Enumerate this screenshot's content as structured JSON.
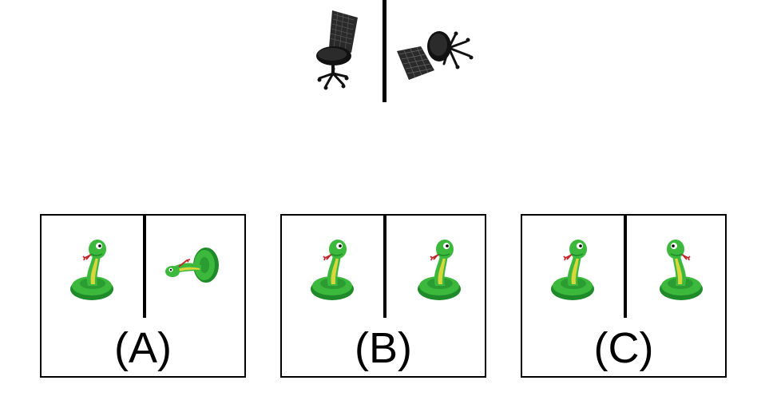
{
  "reference": {
    "left_image": "office-chair-view-1",
    "right_image": "office-chair-view-2"
  },
  "options": [
    {
      "label": "(A)",
      "left_image": "green-snake-view-1",
      "right_image": "green-snake-view-rotated"
    },
    {
      "label": "(B)",
      "left_image": "green-snake-view-1",
      "right_image": "green-snake-view-1"
    },
    {
      "label": "(C)",
      "left_image": "green-snake-view-1",
      "right_image": "green-snake-view-mirrored"
    }
  ],
  "colors": {
    "snake_green": "#3cb83c",
    "snake_dark": "#1f8a2a",
    "snake_belly": "#d8d63a",
    "tongue": "#c0282a",
    "chair": "#1a1a1a"
  }
}
